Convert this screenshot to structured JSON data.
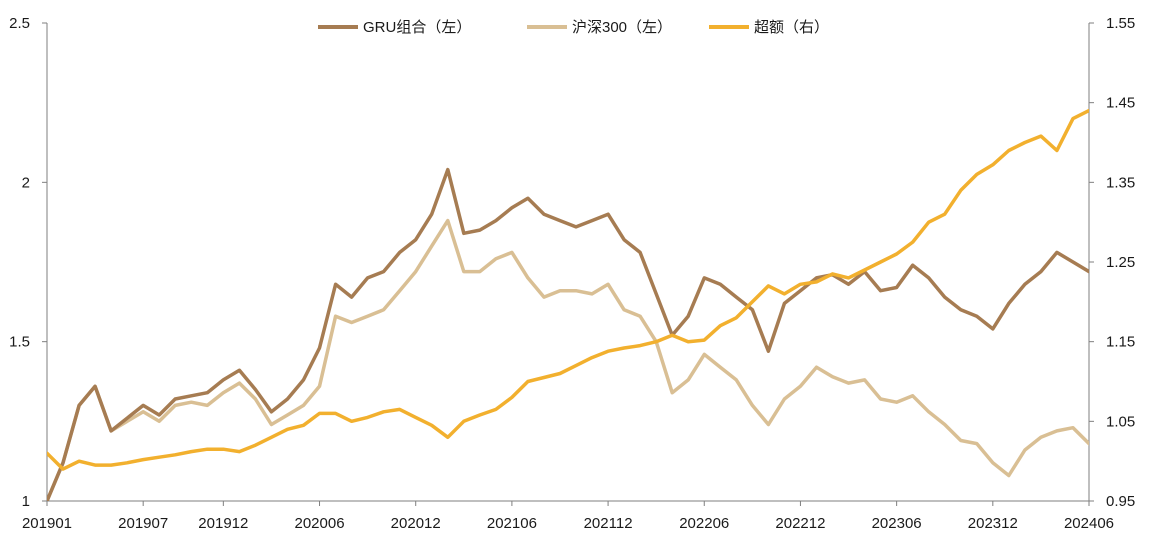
{
  "chart_data": {
    "type": "line",
    "title": "",
    "xlabel": "",
    "ylabel_left": "",
    "ylabel_right": "",
    "x_ticks": [
      "201901",
      "201907",
      "201912",
      "202006",
      "202012",
      "202106",
      "202112",
      "202206",
      "202212",
      "202306",
      "202312",
      "202406"
    ],
    "x_range": [
      "2019-01",
      "2024-06"
    ],
    "ylim_left": [
      1,
      2.5
    ],
    "yticks_left": [
      "1",
      "1.5",
      "2",
      "2.5"
    ],
    "ylim_right": [
      0.95,
      1.55
    ],
    "yticks_right": [
      "0.95",
      "1.05",
      "1.15",
      "1.25",
      "1.35",
      "1.45",
      "1.55"
    ],
    "grid": false,
    "legend_position": "top-center",
    "series": [
      {
        "name": "GRU组合（左）",
        "axis": "left",
        "color": "#a67c52",
        "points": [
          [
            "2019-01",
            1.0
          ],
          [
            "2019-02",
            1.12
          ],
          [
            "2019-03",
            1.3
          ],
          [
            "2019-04",
            1.36
          ],
          [
            "2019-05",
            1.22
          ],
          [
            "2019-06",
            1.26
          ],
          [
            "2019-07",
            1.3
          ],
          [
            "2019-08",
            1.27
          ],
          [
            "2019-09",
            1.32
          ],
          [
            "2019-10",
            1.33
          ],
          [
            "2019-11",
            1.34
          ],
          [
            "2019-12",
            1.38
          ],
          [
            "2020-01",
            1.41
          ],
          [
            "2020-02",
            1.35
          ],
          [
            "2020-03",
            1.28
          ],
          [
            "2020-04",
            1.32
          ],
          [
            "2020-05",
            1.38
          ],
          [
            "2020-06",
            1.48
          ],
          [
            "2020-07",
            1.68
          ],
          [
            "2020-08",
            1.64
          ],
          [
            "2020-09",
            1.7
          ],
          [
            "2020-10",
            1.72
          ],
          [
            "2020-11",
            1.78
          ],
          [
            "2020-12",
            1.82
          ],
          [
            "2021-01",
            1.9
          ],
          [
            "2021-02",
            2.04
          ],
          [
            "2021-03",
            1.84
          ],
          [
            "2021-04",
            1.85
          ],
          [
            "2021-05",
            1.88
          ],
          [
            "2021-06",
            1.92
          ],
          [
            "2021-07",
            1.95
          ],
          [
            "2021-08",
            1.9
          ],
          [
            "2021-09",
            1.88
          ],
          [
            "2021-10",
            1.86
          ],
          [
            "2021-11",
            1.88
          ],
          [
            "2021-12",
            1.9
          ],
          [
            "2022-01",
            1.82
          ],
          [
            "2022-02",
            1.78
          ],
          [
            "2022-03",
            1.65
          ],
          [
            "2022-04",
            1.52
          ],
          [
            "2022-05",
            1.58
          ],
          [
            "2022-06",
            1.7
          ],
          [
            "2022-07",
            1.68
          ],
          [
            "2022-08",
            1.64
          ],
          [
            "2022-09",
            1.6
          ],
          [
            "2022-10",
            1.47
          ],
          [
            "2022-11",
            1.62
          ],
          [
            "2022-12",
            1.66
          ],
          [
            "2023-01",
            1.7
          ],
          [
            "2023-02",
            1.71
          ],
          [
            "2023-03",
            1.68
          ],
          [
            "2023-04",
            1.72
          ],
          [
            "2023-05",
            1.66
          ],
          [
            "2023-06",
            1.67
          ],
          [
            "2023-07",
            1.74
          ],
          [
            "2023-08",
            1.7
          ],
          [
            "2023-09",
            1.64
          ],
          [
            "2023-10",
            1.6
          ],
          [
            "2023-11",
            1.58
          ],
          [
            "2023-12",
            1.54
          ],
          [
            "2024-01",
            1.62
          ],
          [
            "2024-02",
            1.68
          ],
          [
            "2024-03",
            1.72
          ],
          [
            "2024-04",
            1.78
          ],
          [
            "2024-05",
            1.75
          ],
          [
            "2024-06",
            1.72
          ]
        ]
      },
      {
        "name": "沪深300（左）",
        "axis": "left",
        "color": "#d9bf94",
        "points": [
          [
            "2019-01",
            1.0
          ],
          [
            "2019-02",
            1.12
          ],
          [
            "2019-03",
            1.3
          ],
          [
            "2019-04",
            1.36
          ],
          [
            "2019-05",
            1.22
          ],
          [
            "2019-06",
            1.25
          ],
          [
            "2019-07",
            1.28
          ],
          [
            "2019-08",
            1.25
          ],
          [
            "2019-09",
            1.3
          ],
          [
            "2019-10",
            1.31
          ],
          [
            "2019-11",
            1.3
          ],
          [
            "2019-12",
            1.34
          ],
          [
            "2020-01",
            1.37
          ],
          [
            "2020-02",
            1.32
          ],
          [
            "2020-03",
            1.24
          ],
          [
            "2020-04",
            1.27
          ],
          [
            "2020-05",
            1.3
          ],
          [
            "2020-06",
            1.36
          ],
          [
            "2020-07",
            1.58
          ],
          [
            "2020-08",
            1.56
          ],
          [
            "2020-09",
            1.58
          ],
          [
            "2020-10",
            1.6
          ],
          [
            "2020-11",
            1.66
          ],
          [
            "2020-12",
            1.72
          ],
          [
            "2021-01",
            1.8
          ],
          [
            "2021-02",
            1.88
          ],
          [
            "2021-03",
            1.72
          ],
          [
            "2021-04",
            1.72
          ],
          [
            "2021-05",
            1.76
          ],
          [
            "2021-06",
            1.78
          ],
          [
            "2021-07",
            1.7
          ],
          [
            "2021-08",
            1.64
          ],
          [
            "2021-09",
            1.66
          ],
          [
            "2021-10",
            1.66
          ],
          [
            "2021-11",
            1.65
          ],
          [
            "2021-12",
            1.68
          ],
          [
            "2022-01",
            1.6
          ],
          [
            "2022-02",
            1.58
          ],
          [
            "2022-03",
            1.5
          ],
          [
            "2022-04",
            1.34
          ],
          [
            "2022-05",
            1.38
          ],
          [
            "2022-06",
            1.46
          ],
          [
            "2022-07",
            1.42
          ],
          [
            "2022-08",
            1.38
          ],
          [
            "2022-09",
            1.3
          ],
          [
            "2022-10",
            1.24
          ],
          [
            "2022-11",
            1.32
          ],
          [
            "2022-12",
            1.36
          ],
          [
            "2023-01",
            1.42
          ],
          [
            "2023-02",
            1.39
          ],
          [
            "2023-03",
            1.37
          ],
          [
            "2023-04",
            1.38
          ],
          [
            "2023-05",
            1.32
          ],
          [
            "2023-06",
            1.31
          ],
          [
            "2023-07",
            1.33
          ],
          [
            "2023-08",
            1.28
          ],
          [
            "2023-09",
            1.24
          ],
          [
            "2023-10",
            1.19
          ],
          [
            "2023-11",
            1.18
          ],
          [
            "2023-12",
            1.12
          ],
          [
            "2024-01",
            1.08
          ],
          [
            "2024-02",
            1.16
          ],
          [
            "2024-03",
            1.2
          ],
          [
            "2024-04",
            1.22
          ],
          [
            "2024-05",
            1.23
          ],
          [
            "2024-06",
            1.18
          ]
        ]
      },
      {
        "name": "超额（右）",
        "axis": "right",
        "color": "#f2b02e",
        "points": [
          [
            "2019-01",
            1.01
          ],
          [
            "2019-02",
            0.99
          ],
          [
            "2019-03",
            1.0
          ],
          [
            "2019-04",
            0.995
          ],
          [
            "2019-05",
            0.995
          ],
          [
            "2019-06",
            0.998
          ],
          [
            "2019-07",
            1.002
          ],
          [
            "2019-08",
            1.005
          ],
          [
            "2019-09",
            1.008
          ],
          [
            "2019-10",
            1.012
          ],
          [
            "2019-11",
            1.015
          ],
          [
            "2019-12",
            1.015
          ],
          [
            "2020-01",
            1.012
          ],
          [
            "2020-02",
            1.02
          ],
          [
            "2020-03",
            1.03
          ],
          [
            "2020-04",
            1.04
          ],
          [
            "2020-05",
            1.045
          ],
          [
            "2020-06",
            1.06
          ],
          [
            "2020-07",
            1.06
          ],
          [
            "2020-08",
            1.05
          ],
          [
            "2020-09",
            1.055
          ],
          [
            "2020-10",
            1.062
          ],
          [
            "2020-11",
            1.065
          ],
          [
            "2020-12",
            1.055
          ],
          [
            "2021-01",
            1.045
          ],
          [
            "2021-02",
            1.03
          ],
          [
            "2021-03",
            1.05
          ],
          [
            "2021-04",
            1.058
          ],
          [
            "2021-05",
            1.065
          ],
          [
            "2021-06",
            1.08
          ],
          [
            "2021-07",
            1.1
          ],
          [
            "2021-08",
            1.105
          ],
          [
            "2021-09",
            1.11
          ],
          [
            "2021-10",
            1.12
          ],
          [
            "2021-11",
            1.13
          ],
          [
            "2021-12",
            1.138
          ],
          [
            "2022-01",
            1.142
          ],
          [
            "2022-02",
            1.145
          ],
          [
            "2022-03",
            1.15
          ],
          [
            "2022-04",
            1.158
          ],
          [
            "2022-05",
            1.15
          ],
          [
            "2022-06",
            1.152
          ],
          [
            "2022-07",
            1.17
          ],
          [
            "2022-08",
            1.18
          ],
          [
            "2022-09",
            1.2
          ],
          [
            "2022-10",
            1.22
          ],
          [
            "2022-11",
            1.21
          ],
          [
            "2022-12",
            1.222
          ],
          [
            "2023-01",
            1.225
          ],
          [
            "2023-02",
            1.235
          ],
          [
            "2023-03",
            1.23
          ],
          [
            "2023-04",
            1.24
          ],
          [
            "2023-05",
            1.25
          ],
          [
            "2023-06",
            1.26
          ],
          [
            "2023-07",
            1.275
          ],
          [
            "2023-08",
            1.3
          ],
          [
            "2023-09",
            1.31
          ],
          [
            "2023-10",
            1.34
          ],
          [
            "2023-11",
            1.36
          ],
          [
            "2023-12",
            1.372
          ],
          [
            "2024-01",
            1.39
          ],
          [
            "2024-02",
            1.4
          ],
          [
            "2024-03",
            1.408
          ],
          [
            "2024-04",
            1.39
          ],
          [
            "2024-05",
            1.43
          ],
          [
            "2024-06",
            1.44
          ]
        ]
      }
    ]
  }
}
